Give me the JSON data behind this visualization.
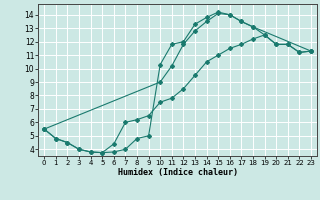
{
  "xlabel": "Humidex (Indice chaleur)",
  "bg_color": "#cce8e4",
  "grid_color": "#ffffff",
  "line_color": "#1a7a6e",
  "xlim": [
    -0.5,
    23.5
  ],
  "ylim": [
    3.5,
    14.8
  ],
  "xticks": [
    0,
    1,
    2,
    3,
    4,
    5,
    6,
    7,
    8,
    9,
    10,
    11,
    12,
    13,
    14,
    15,
    16,
    17,
    18,
    19,
    20,
    21,
    22,
    23
  ],
  "yticks": [
    4,
    5,
    6,
    7,
    8,
    9,
    10,
    11,
    12,
    13,
    14
  ],
  "line1_x": [
    0,
    1,
    2,
    3,
    4,
    5,
    6,
    7,
    8,
    9,
    10,
    11,
    12,
    13,
    14,
    15,
    16,
    17,
    18,
    23
  ],
  "line1_y": [
    5.5,
    4.8,
    4.5,
    4.0,
    3.8,
    3.75,
    3.8,
    4.0,
    4.8,
    5.0,
    10.3,
    11.8,
    12.0,
    13.3,
    13.8,
    14.2,
    14.0,
    13.5,
    13.1,
    11.3
  ],
  "line2_x": [
    0,
    1,
    2,
    3,
    4,
    5,
    6,
    7,
    8,
    9,
    10,
    11,
    12,
    13,
    14,
    15,
    16,
    17,
    18,
    19,
    20,
    21,
    22,
    23
  ],
  "line2_y": [
    5.5,
    4.8,
    4.5,
    4.0,
    3.8,
    3.75,
    4.4,
    6.0,
    6.2,
    6.5,
    7.5,
    7.8,
    8.5,
    9.5,
    10.5,
    11.0,
    11.5,
    11.8,
    12.2,
    12.5,
    11.8,
    11.8,
    11.2,
    11.3
  ],
  "line3_x": [
    0,
    10,
    11,
    12,
    13,
    14,
    15,
    16,
    17,
    18,
    19,
    20,
    21,
    22,
    23
  ],
  "line3_y": [
    5.5,
    9.0,
    10.2,
    11.8,
    12.8,
    13.5,
    14.1,
    14.0,
    13.5,
    13.1,
    12.5,
    11.8,
    11.8,
    11.2,
    11.3
  ]
}
